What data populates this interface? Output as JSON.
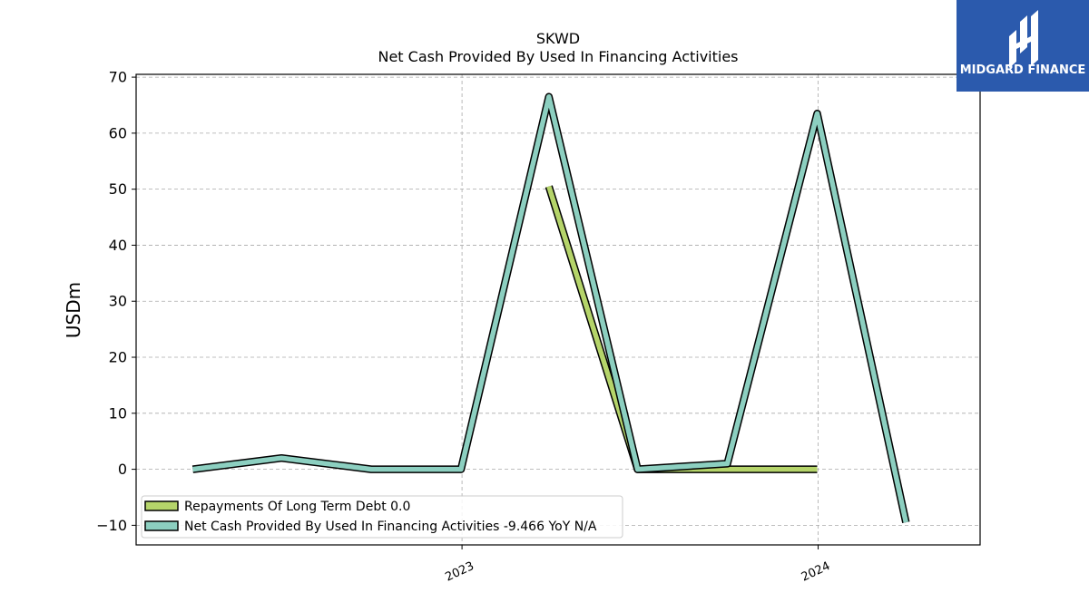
{
  "brand": {
    "name": "MIDGARD FINANCE",
    "color": "#2b5aad"
  },
  "chart_data": {
    "type": "line",
    "title": "SKWD",
    "subtitle": "Net Cash Provided By Used In Financing Activities",
    "xlabel": "",
    "ylabel": "USDm",
    "x_ticks": [
      "2023",
      "2024"
    ],
    "y_ticks": [
      -10,
      0,
      10,
      20,
      30,
      40,
      50,
      60,
      70
    ],
    "ylim": [
      -13.5,
      70.5
    ],
    "xlim": [
      "2022-02-01",
      "2024-06-15"
    ],
    "grid": true,
    "legend_position": "bottom-left",
    "series": [
      {
        "name": "Repayments Of Long Term Debt",
        "legend_label": "Repayments Of Long Term Debt  0.0",
        "color": "#b5d46a",
        "x": [
          "2023-03-31",
          "2023-06-30",
          "2023-09-30",
          "2023-12-31"
        ],
        "y": [
          50.5,
          0.0,
          0.0,
          0.0
        ]
      },
      {
        "name": "Net Cash Provided By Used In Financing Activities",
        "legend_label": "Net Cash Provided By Used In Financing Activities  -9.466 YoY N/A",
        "color": "#8ccfc0",
        "x": [
          "2022-03-31",
          "2022-06-30",
          "2022-09-30",
          "2022-12-31",
          "2023-03-31",
          "2023-06-30",
          "2023-09-30",
          "2023-12-31",
          "2024-03-31"
        ],
        "y": [
          0.0,
          2.0,
          0.0,
          0.0,
          66.5,
          0.0,
          1.0,
          63.5,
          -9.466
        ]
      }
    ]
  }
}
